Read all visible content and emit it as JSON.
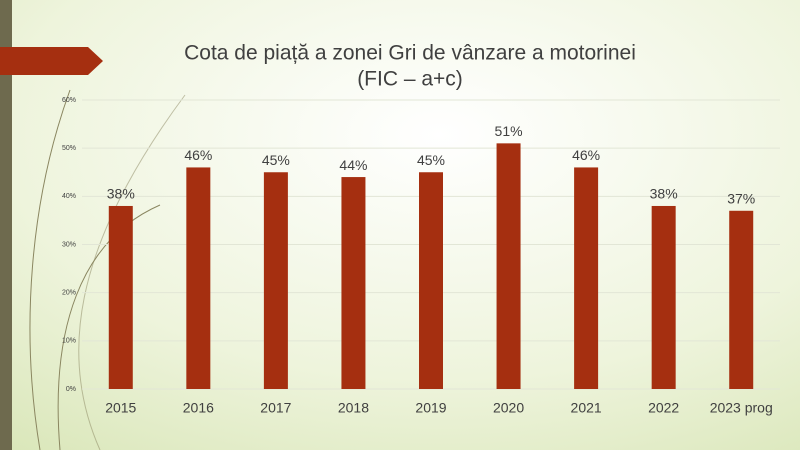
{
  "chart_data": {
    "type": "bar",
    "title": "Cota de piață a zonei Gri de vânzare a motorinei",
    "subtitle": "(FIC – a+c)",
    "categories": [
      "2015",
      "2016",
      "2017",
      "2018",
      "2019",
      "2020",
      "2021",
      "2022",
      "2023 prog"
    ],
    "values": [
      38,
      46,
      45,
      44,
      45,
      51,
      46,
      38,
      37
    ],
    "value_labels": [
      "38%",
      "46%",
      "45%",
      "44%",
      "45%",
      "51%",
      "46%",
      "38%",
      "37%"
    ],
    "color": "#a52f10",
    "ylim": [
      0,
      60
    ],
    "yticks": [
      {
        "value": 0,
        "label": "0%"
      },
      {
        "value": 10,
        "label": "10%"
      },
      {
        "value": 20,
        "label": "20%"
      },
      {
        "value": 30,
        "label": "30%"
      },
      {
        "value": 40,
        "label": "40%"
      },
      {
        "value": 50,
        "label": "50%"
      },
      {
        "value": 60,
        "label": "60%"
      }
    ],
    "grid": true
  }
}
